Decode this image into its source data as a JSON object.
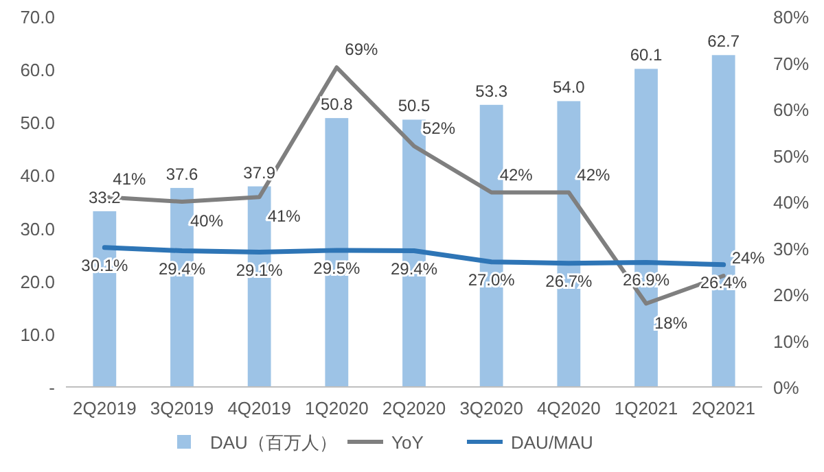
{
  "chart_data": {
    "type": "bar",
    "categories": [
      "2Q2019",
      "3Q2019",
      "4Q2019",
      "1Q2020",
      "2Q2020",
      "3Q2020",
      "4Q2020",
      "1Q2021",
      "2Q2021"
    ],
    "series": [
      {
        "name": "DAU（百万人）",
        "color": "#9dc3e6",
        "values": [
          33.2,
          37.6,
          37.9,
          50.8,
          50.5,
          53.3,
          54.0,
          60.1,
          62.7
        ],
        "value_labels": [
          "33.2",
          "37.6",
          "37.9",
          "50.8",
          "50.5",
          "53.3",
          "54.0",
          "60.1",
          "62.7"
        ]
      },
      {
        "name": "YoY",
        "type": "line",
        "axis": "y2",
        "color": "#7f7f7f",
        "values": [
          41,
          40,
          41,
          69,
          52,
          42,
          42,
          18,
          24
        ],
        "value_labels": [
          "41%",
          "40%",
          "41%",
          "69%",
          "52%",
          "42%",
          "42%",
          "18%",
          "24%"
        ]
      },
      {
        "name": "DAU/MAU",
        "type": "line",
        "axis": "y2",
        "color": "#2e75b6",
        "values": [
          30.1,
          29.4,
          29.1,
          29.5,
          29.4,
          27.0,
          26.7,
          26.9,
          26.4
        ],
        "value_labels": [
          "30.1%",
          "29.4%",
          "29.1%",
          "29.5%",
          "29.4%",
          "27.0%",
          "26.7%",
          "26.9%",
          "26.4%"
        ]
      }
    ],
    "ylim": [
      0,
      70
    ],
    "yticks": [
      {
        "value": 0,
        "label": "-"
      },
      {
        "value": 10,
        "label": "10.0"
      },
      {
        "value": 20,
        "label": "20.0"
      },
      {
        "value": 30,
        "label": "30.0"
      },
      {
        "value": 40,
        "label": "40.0"
      },
      {
        "value": 50,
        "label": "50.0"
      },
      {
        "value": 60,
        "label": "60.0"
      },
      {
        "value": 70,
        "label": "70.0"
      }
    ],
    "y2lim": [
      0,
      80
    ],
    "y2ticks": [
      {
        "value": 0,
        "label": "0%"
      },
      {
        "value": 10,
        "label": "10%"
      },
      {
        "value": 20,
        "label": "20%"
      },
      {
        "value": 30,
        "label": "30%"
      },
      {
        "value": 40,
        "label": "40%"
      },
      {
        "value": 50,
        "label": "50%"
      },
      {
        "value": 60,
        "label": "60%"
      },
      {
        "value": 70,
        "label": "70%"
      },
      {
        "value": 80,
        "label": "80%"
      }
    ],
    "grid": false,
    "legend": "bottom"
  }
}
